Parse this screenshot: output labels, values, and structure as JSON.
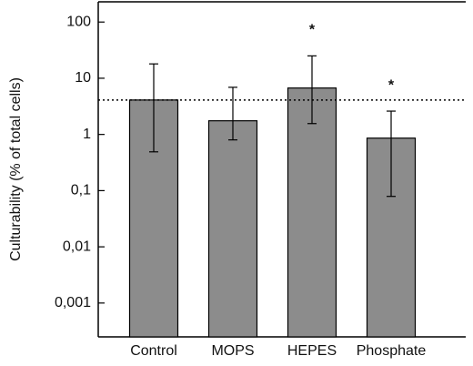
{
  "chart_data": {
    "type": "bar",
    "ylabel": "Culturability (% of total cells)",
    "categories": [
      "Control",
      "MOPS",
      "HEPES",
      "Phosphate"
    ],
    "values": [
      4.1,
      1.75,
      6.7,
      0.86
    ],
    "upper": [
      18,
      6.9,
      25,
      2.6
    ],
    "lower": [
      0.49,
      0.8,
      1.56,
      0.079
    ],
    "color": "#8c8c8c",
    "log_scale": true,
    "ylim": [
      0.00025,
      229
    ],
    "yticks": [
      100,
      10,
      1,
      {
        "value": 0.1,
        "label": "0,1"
      },
      {
        "value": 0.01,
        "label": "0,01"
      },
      {
        "value": 0.001,
        "label": "0,001"
      }
    ],
    "reference_line": 4.1,
    "annotations": [
      {
        "text": "*",
        "category": "HEPES"
      },
      {
        "text": "*",
        "category": "Phosphate"
      }
    ]
  }
}
